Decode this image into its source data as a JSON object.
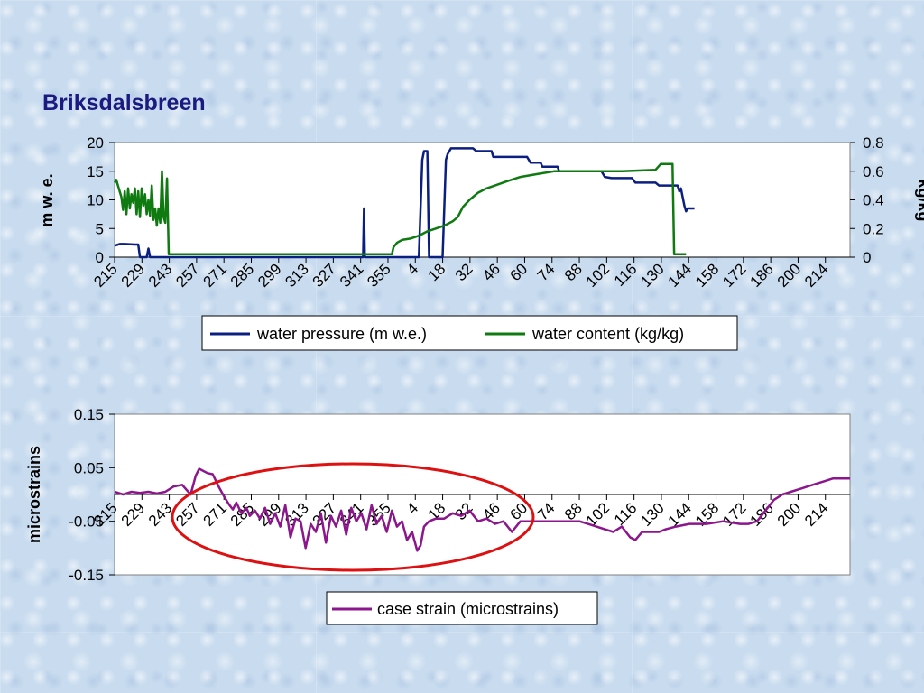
{
  "slide_title": "Briksdalsbreen",
  "colors": {
    "water_pressure": "#0b1f80",
    "water_content": "#0e7a10",
    "case_strain": "#8c168c",
    "highlight_ellipse": "#dd1111",
    "plot_background": "#ffffff"
  },
  "chart_data": [
    {
      "type": "line",
      "title": "",
      "xlabel": "",
      "ylabel": "m w. e.",
      "y2label": "kg/kg",
      "ylim": [
        0,
        20
      ],
      "y2lim": [
        0,
        0.8
      ],
      "yticks": [
        "20",
        "15",
        "10",
        "5",
        "0"
      ],
      "y2ticks": [
        "0.8",
        "0.6",
        "0.4",
        "0.2",
        "0"
      ],
      "x_tick_labels": [
        "215",
        "229",
        "243",
        "257",
        "271",
        "285",
        "299",
        "313",
        "327",
        "341",
        "355",
        "4",
        "18",
        "32",
        "46",
        "60",
        "74",
        "88",
        "102",
        "116",
        "130",
        "144",
        "158",
        "172",
        "186",
        "200",
        "214"
      ],
      "legend_position": "bottom",
      "series": [
        {
          "name": "water pressure (m w.e.)",
          "axis": "left",
          "points": [
            [
              0,
              2
            ],
            [
              3,
              2.3
            ],
            [
              6,
              2.3
            ],
            [
              12,
              2.2
            ],
            [
              14,
              2.2
            ],
            [
              15,
              0
            ],
            [
              19,
              0
            ],
            [
              20,
              1.5
            ],
            [
              21,
              0
            ],
            [
              147,
              0
            ],
            [
              147.5,
              8.5
            ],
            [
              148,
              0
            ],
            [
              180,
              0
            ],
            [
              182,
              17
            ],
            [
              183,
              18.5
            ],
            [
              185,
              18.5
            ],
            [
              186,
              0
            ],
            [
              194,
              0
            ],
            [
              196,
              17
            ],
            [
              197,
              18
            ],
            [
              199,
              19
            ],
            [
              212,
              19
            ],
            [
              214,
              18.5
            ],
            [
              223,
              18.5
            ],
            [
              224,
              17.5
            ],
            [
              244,
              17.5
            ],
            [
              246,
              16.5
            ],
            [
              252,
              16.5
            ],
            [
              253,
              15.8
            ],
            [
              262,
              15.8
            ],
            [
              263,
              15
            ],
            [
              288,
              15
            ],
            [
              290,
              14
            ],
            [
              294,
              13.8
            ],
            [
              306,
              13.8
            ],
            [
              308,
              13
            ],
            [
              320,
              13
            ],
            [
              322,
              12.5
            ],
            [
              333,
              12.5
            ],
            [
              334,
              11.5
            ],
            [
              335,
              12
            ],
            [
              336,
              10.5
            ],
            [
              337,
              9
            ],
            [
              338,
              8
            ],
            [
              339,
              8.5
            ],
            [
              343,
              8.5
            ]
          ]
        },
        {
          "name": "water content (kg/kg)",
          "axis": "right",
          "points": [
            [
              0,
              0.52
            ],
            [
              1,
              0.54
            ],
            [
              2,
              0.5
            ],
            [
              3,
              0.46
            ],
            [
              4,
              0.42
            ],
            [
              5,
              0.33
            ],
            [
              6,
              0.46
            ],
            [
              7,
              0.3
            ],
            [
              8,
              0.48
            ],
            [
              9,
              0.34
            ],
            [
              10,
              0.44
            ],
            [
              11,
              0.38
            ],
            [
              12,
              0.48
            ],
            [
              13,
              0.3
            ],
            [
              14,
              0.46
            ],
            [
              15,
              0.28
            ],
            [
              16,
              0.48
            ],
            [
              17,
              0.36
            ],
            [
              18,
              0.44
            ],
            [
              19,
              0.3
            ],
            [
              20,
              0.4
            ],
            [
              21,
              0.29
            ],
            [
              22,
              0.5
            ],
            [
              23,
              0.26
            ],
            [
              24,
              0.34
            ],
            [
              25,
              0.22
            ],
            [
              26,
              0.34
            ],
            [
              27,
              0.24
            ],
            [
              28,
              0.6
            ],
            [
              29,
              0.28
            ],
            [
              30,
              0.24
            ],
            [
              31,
              0.55
            ],
            [
              32,
              0.02
            ],
            [
              33,
              0.02
            ],
            [
              164,
              0.02
            ],
            [
              165,
              0.07
            ],
            [
              167,
              0.1
            ],
            [
              170,
              0.12
            ],
            [
              175,
              0.13
            ],
            [
              180,
              0.15
            ],
            [
              185,
              0.18
            ],
            [
              190,
              0.2
            ],
            [
              195,
              0.22
            ],
            [
              200,
              0.25
            ],
            [
              203,
              0.28
            ],
            [
              206,
              0.35
            ],
            [
              210,
              0.4
            ],
            [
              215,
              0.45
            ],
            [
              220,
              0.48
            ],
            [
              225,
              0.5
            ],
            [
              232,
              0.53
            ],
            [
              240,
              0.56
            ],
            [
              250,
              0.58
            ],
            [
              260,
              0.6
            ],
            [
              300,
              0.6
            ],
            [
              320,
              0.61
            ],
            [
              323,
              0.65
            ],
            [
              330,
              0.65
            ],
            [
              331,
              0.02
            ],
            [
              338,
              0.02
            ]
          ]
        }
      ]
    },
    {
      "type": "line",
      "title": "",
      "xlabel": "",
      "ylabel": "microstrains",
      "ylim": [
        -0.15,
        0.15
      ],
      "yticks": [
        "0.15",
        "0.05",
        "-0.05",
        "-0.15"
      ],
      "x_tick_labels": [
        "215",
        "229",
        "243",
        "257",
        "271",
        "285",
        "299",
        "313",
        "327",
        "341",
        "355",
        "4",
        "18",
        "32",
        "46",
        "60",
        "74",
        "88",
        "102",
        "116",
        "130",
        "144",
        "158",
        "172",
        "186",
        "200",
        "214"
      ],
      "legend_position": "bottom",
      "series": [
        {
          "name": "case strain (microstrains)",
          "points": [
            [
              0,
              0.005
            ],
            [
              5,
              0.0
            ],
            [
              10,
              0.005
            ],
            [
              15,
              0.003
            ],
            [
              20,
              0.005
            ],
            [
              25,
              0.002
            ],
            [
              30,
              0.005
            ],
            [
              35,
              0.015
            ],
            [
              40,
              0.018
            ],
            [
              45,
              0.0
            ],
            [
              48,
              0.035
            ],
            [
              50,
              0.048
            ],
            [
              55,
              0.04
            ],
            [
              58,
              0.038
            ],
            [
              60,
              0.025
            ],
            [
              62,
              0.012
            ],
            [
              65,
              -0.005
            ],
            [
              68,
              -0.02
            ],
            [
              70,
              -0.028
            ],
            [
              72,
              -0.015
            ],
            [
              75,
              -0.035
            ],
            [
              78,
              -0.025
            ],
            [
              80,
              -0.04
            ],
            [
              83,
              -0.03
            ],
            [
              86,
              -0.045
            ],
            [
              89,
              -0.025
            ],
            [
              92,
              -0.055
            ],
            [
              95,
              -0.035
            ],
            [
              98,
              -0.06
            ],
            [
              101,
              -0.02
            ],
            [
              104,
              -0.08
            ],
            [
              107,
              -0.045
            ],
            [
              110,
              -0.05
            ],
            [
              113,
              -0.1
            ],
            [
              116,
              -0.055
            ],
            [
              119,
              -0.07
            ],
            [
              122,
              -0.035
            ],
            [
              125,
              -0.09
            ],
            [
              128,
              -0.04
            ],
            [
              131,
              -0.06
            ],
            [
              134,
              -0.03
            ],
            [
              137,
              -0.075
            ],
            [
              140,
              -0.025
            ],
            [
              143,
              -0.05
            ],
            [
              146,
              -0.035
            ],
            [
              149,
              -0.065
            ],
            [
              152,
              -0.02
            ],
            [
              155,
              -0.055
            ],
            [
              158,
              -0.04
            ],
            [
              161,
              -0.07
            ],
            [
              164,
              -0.03
            ],
            [
              167,
              -0.06
            ],
            [
              170,
              -0.05
            ],
            [
              173,
              -0.085
            ],
            [
              176,
              -0.07
            ],
            [
              179,
              -0.105
            ],
            [
              181,
              -0.095
            ],
            [
              183,
              -0.06
            ],
            [
              186,
              -0.05
            ],
            [
              190,
              -0.045
            ],
            [
              195,
              -0.045
            ],
            [
              200,
              -0.035
            ],
            [
              205,
              -0.04
            ],
            [
              210,
              -0.03
            ],
            [
              215,
              -0.05
            ],
            [
              220,
              -0.045
            ],
            [
              225,
              -0.055
            ],
            [
              230,
              -0.05
            ],
            [
              235,
              -0.07
            ],
            [
              240,
              -0.05
            ],
            [
              245,
              -0.05
            ],
            [
              255,
              -0.05
            ],
            [
              265,
              -0.05
            ],
            [
              275,
              -0.05
            ],
            [
              280,
              -0.055
            ],
            [
              285,
              -0.06
            ],
            [
              290,
              -0.065
            ],
            [
              295,
              -0.07
            ],
            [
              300,
              -0.06
            ],
            [
              305,
              -0.08
            ],
            [
              308,
              -0.085
            ],
            [
              312,
              -0.07
            ],
            [
              318,
              -0.07
            ],
            [
              322,
              -0.07
            ],
            [
              326,
              -0.065
            ],
            [
              332,
              -0.06
            ],
            [
              340,
              -0.055
            ],
            [
              350,
              -0.055
            ],
            [
              360,
              -0.05
            ],
            [
              370,
              -0.055
            ],
            [
              375,
              -0.055
            ],
            [
              380,
              -0.05
            ],
            [
              385,
              -0.03
            ],
            [
              390,
              -0.01
            ],
            [
              395,
              0.0
            ],
            [
              400,
              0.005
            ],
            [
              405,
              0.01
            ],
            [
              410,
              0.015
            ],
            [
              415,
              0.02
            ],
            [
              420,
              0.025
            ],
            [
              425,
              0.03
            ],
            [
              432,
              0.03
            ],
            [
              435,
              0.03
            ]
          ]
        }
      ]
    }
  ]
}
